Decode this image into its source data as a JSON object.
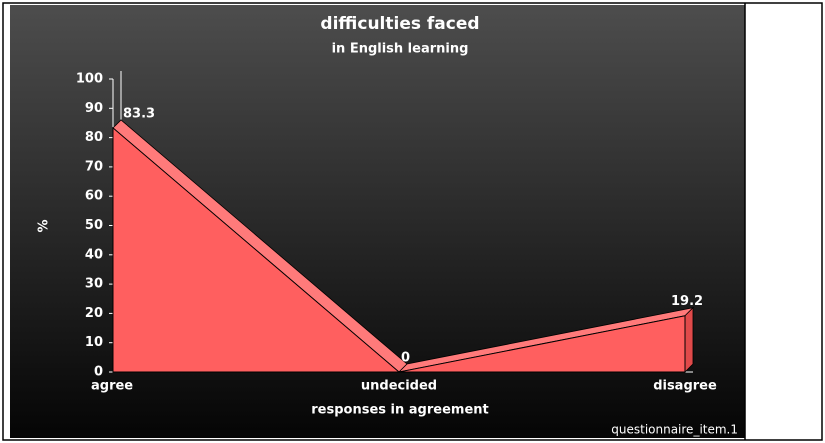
{
  "chart_data": {
    "type": "area",
    "title": "difficulties faced",
    "subtitle": "in English learning",
    "x_label": "responses in agreement",
    "y_label": "%",
    "footnote": "questionnaire_item.1",
    "categories": [
      "agree",
      "undecided",
      "disagree"
    ],
    "values": [
      83.3,
      0,
      19.2
    ],
    "color": "#ff5f5f",
    "ylim": [
      0,
      100
    ],
    "yticks": [
      0,
      10,
      20,
      30,
      40,
      50,
      60,
      70,
      80,
      90,
      100
    ],
    "grid": false
  }
}
